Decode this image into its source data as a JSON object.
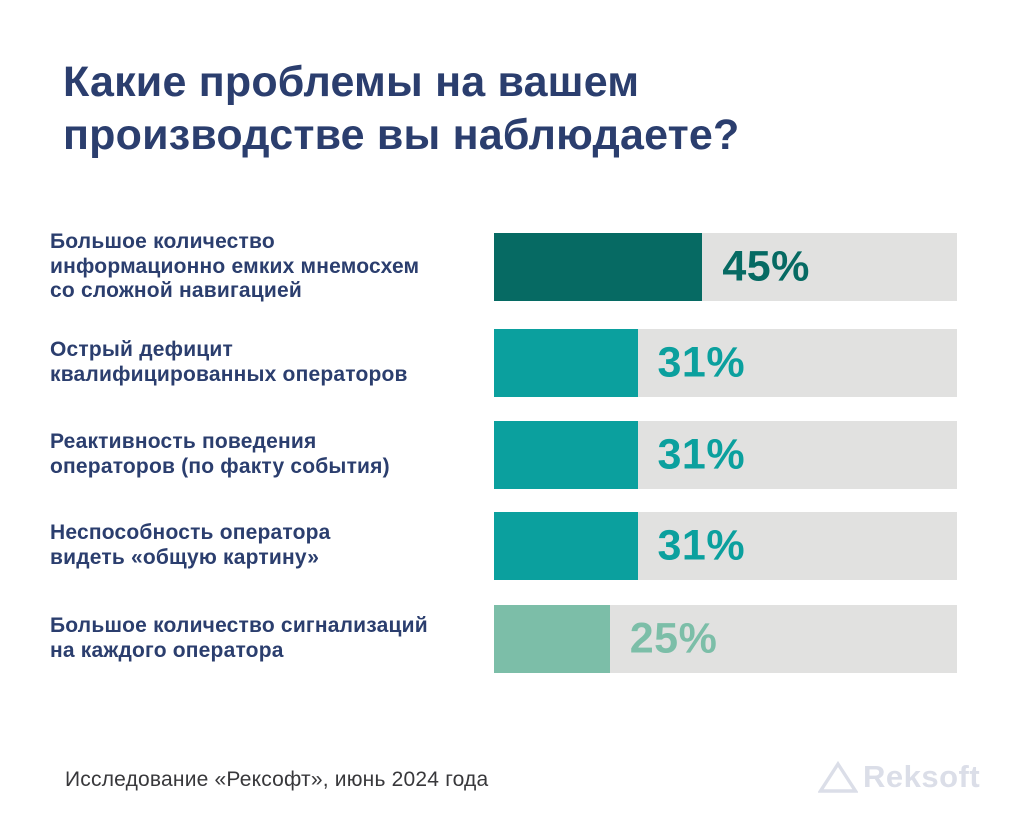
{
  "title": {
    "lines": [
      "Какие проблемы на вашем",
      "производстве вы наблюдаете?"
    ],
    "full": "Какие проблемы на вашем производстве вы наблюдаете?"
  },
  "chart_data": {
    "type": "bar",
    "orientation": "horizontal",
    "title": "Какие проблемы на вашем производстве вы наблюдаете?",
    "xlabel": "",
    "ylabel": "",
    "xlim": [
      0,
      100
    ],
    "unit": "%",
    "grid": false,
    "legend": false,
    "categories": [
      "Большое количество информационно емких мнемосхем со сложной навигацией",
      "Острый дефицит квалифицированных операторов",
      "Реактивность поведения операторов (по факту события)",
      "Неспособность оператора видеть «общую картину»",
      "Большое количество сигнализаций на каждого оператора"
    ],
    "category_lines": [
      [
        "Большое количество",
        "информационно емких мнемосхем",
        "со сложной навигацией"
      ],
      [
        "Острый дефицит",
        "квалифицированных операторов"
      ],
      [
        "Реактивность поведения",
        "операторов (по факту события)"
      ],
      [
        "Неспособность оператора",
        "видеть «общую картину»"
      ],
      [
        "Большое количество сигнализаций",
        "на каждого оператора"
      ]
    ],
    "values": [
      45,
      31,
      31,
      31,
      25
    ],
    "value_labels": [
      "45%",
      "31%",
      "31%",
      "31%",
      "25%"
    ],
    "bar_colors": [
      "#066a63",
      "#0ba09e",
      "#0ba09e",
      "#0ba09e",
      "#7cbea8"
    ],
    "value_label_colors": [
      "#066a63",
      "#0ba09e",
      "#0ba09e",
      "#0ba09e",
      "#7cbea8"
    ],
    "track_color": "#e1e1e0",
    "label_color": "#2b3e6e"
  },
  "footer": {
    "source": "Исследование «Рексофт», июнь 2024 года",
    "logo_text": "Reksoft"
  },
  "colors": {
    "background": "#ffffff",
    "title": "#2b3e6e",
    "footer_text": "#38383b",
    "logo": "#dbdee8"
  }
}
